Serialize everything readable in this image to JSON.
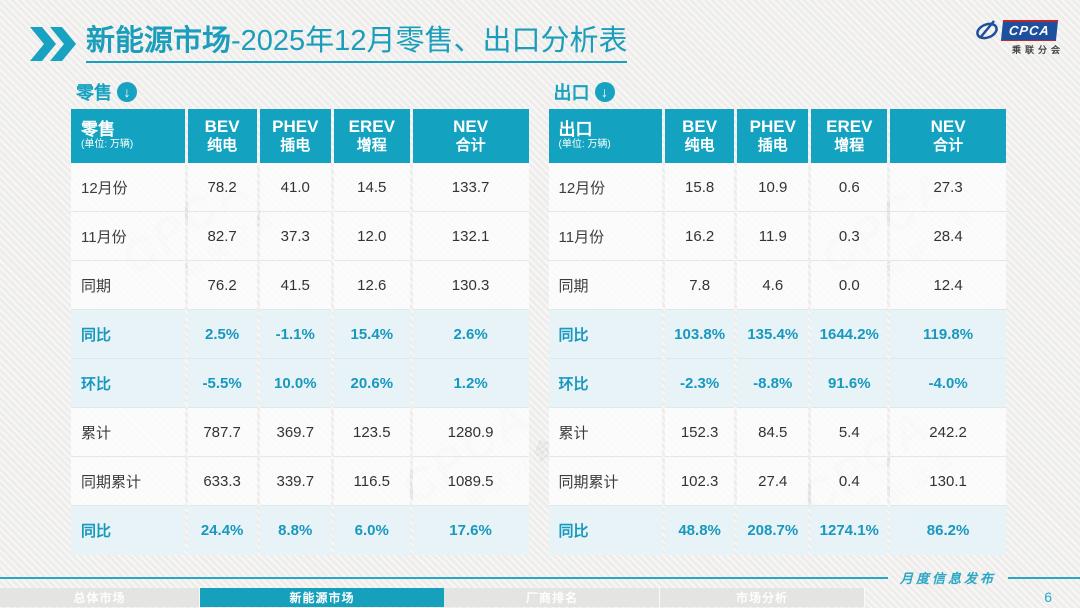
{
  "page": {
    "title_bold": "新能源市场",
    "title_rest": "-2025年12月零售、出口分析表",
    "release_label": "月度信息发布",
    "page_number": "6"
  },
  "logo": {
    "name": "CPCA",
    "subtitle": "乘联分会"
  },
  "watermark": {
    "text": "CPCA",
    "subtext": "乘联分会"
  },
  "colors": {
    "accent_teal": "#13a3c0",
    "highlight_bg": "#e8f3f8",
    "highlight_text": "#1798bd",
    "logo_blue": "#1c4f9e"
  },
  "tables": [
    {
      "id": "retail",
      "section_label": "零售",
      "corner_label": "零售",
      "corner_unit": "(单位: 万辆)",
      "columns": [
        {
          "en": "BEV",
          "zh": "纯电"
        },
        {
          "en": "PHEV",
          "zh": "插电"
        },
        {
          "en": "EREV",
          "zh": "增程"
        },
        {
          "en": "NEV",
          "zh": "合计"
        }
      ],
      "rows": [
        {
          "label": "12月份",
          "values": [
            "78.2",
            "41.0",
            "14.5",
            "133.7"
          ],
          "highlight": false
        },
        {
          "label": "11月份",
          "values": [
            "82.7",
            "37.3",
            "12.0",
            "132.1"
          ],
          "highlight": false
        },
        {
          "label": "同期",
          "values": [
            "76.2",
            "41.5",
            "12.6",
            "130.3"
          ],
          "highlight": false
        },
        {
          "label": "同比",
          "values": [
            "2.5%",
            "-1.1%",
            "15.4%",
            "2.6%"
          ],
          "highlight": true
        },
        {
          "label": "环比",
          "values": [
            "-5.5%",
            "10.0%",
            "20.6%",
            "1.2%"
          ],
          "highlight": true
        },
        {
          "label": "累计",
          "values": [
            "787.7",
            "369.7",
            "123.5",
            "1280.9"
          ],
          "highlight": false
        },
        {
          "label": "同期累计",
          "values": [
            "633.3",
            "339.7",
            "116.5",
            "1089.5"
          ],
          "highlight": false
        },
        {
          "label": "同比",
          "values": [
            "24.4%",
            "8.8%",
            "6.0%",
            "17.6%"
          ],
          "highlight": true
        }
      ]
    },
    {
      "id": "export",
      "section_label": "出口",
      "corner_label": "出口",
      "corner_unit": "(单位: 万辆)",
      "columns": [
        {
          "en": "BEV",
          "zh": "纯电"
        },
        {
          "en": "PHEV",
          "zh": "插电"
        },
        {
          "en": "EREV",
          "zh": "增程"
        },
        {
          "en": "NEV",
          "zh": "合计"
        }
      ],
      "rows": [
        {
          "label": "12月份",
          "values": [
            "15.8",
            "10.9",
            "0.6",
            "27.3"
          ],
          "highlight": false
        },
        {
          "label": "11月份",
          "values": [
            "16.2",
            "11.9",
            "0.3",
            "28.4"
          ],
          "highlight": false
        },
        {
          "label": "同期",
          "values": [
            "7.8",
            "4.6",
            "0.0",
            "12.4"
          ],
          "highlight": false
        },
        {
          "label": "同比",
          "values": [
            "103.8%",
            "135.4%",
            "1644.2%",
            "119.8%"
          ],
          "highlight": true
        },
        {
          "label": "环比",
          "values": [
            "-2.3%",
            "-8.8%",
            "91.6%",
            "-4.0%"
          ],
          "highlight": true
        },
        {
          "label": "累计",
          "values": [
            "152.3",
            "84.5",
            "5.4",
            "242.2"
          ],
          "highlight": false
        },
        {
          "label": "同期累计",
          "values": [
            "102.3",
            "27.4",
            "0.4",
            "130.1"
          ],
          "highlight": false
        },
        {
          "label": "同比",
          "values": [
            "48.8%",
            "208.7%",
            "1274.1%",
            "86.2%"
          ],
          "highlight": true
        }
      ]
    }
  ],
  "footer_tabs": [
    {
      "label": "总体市场",
      "active": false
    },
    {
      "label": "新能源市场",
      "active": true
    },
    {
      "label": "厂商排名",
      "active": false
    },
    {
      "label": "市场分析",
      "active": false
    }
  ]
}
